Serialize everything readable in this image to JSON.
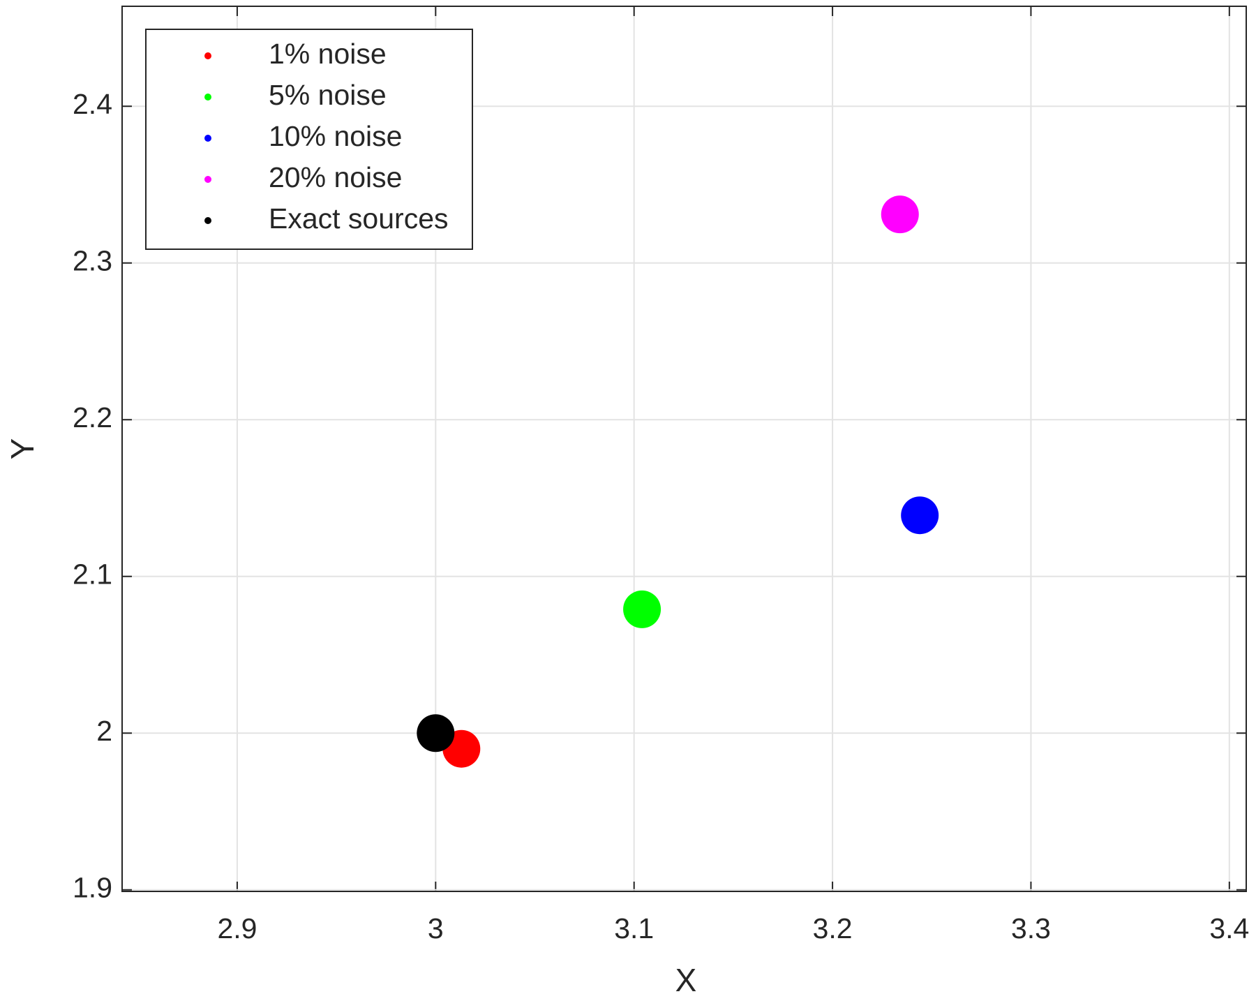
{
  "chart_data": {
    "type": "scatter",
    "xlabel": "X",
    "ylabel": "Y",
    "xlim": [
      2.842,
      3.4085
    ],
    "ylim": [
      1.899,
      2.4638
    ],
    "xticks": [
      2.9,
      3,
      3.1,
      3.2,
      3.3,
      3.4
    ],
    "yticks": [
      1.9,
      2,
      2.1,
      2.2,
      2.3,
      2.4
    ],
    "grid": true,
    "legend": "upper left",
    "series": [
      {
        "name": "1% noise",
        "color": "#ff0000",
        "x": [
          3.013
        ],
        "y": [
          1.99
        ]
      },
      {
        "name": "5% noise",
        "color": "#00ff00",
        "x": [
          3.104
        ],
        "y": [
          2.079
        ]
      },
      {
        "name": "10% noise",
        "color": "#0000ff",
        "x": [
          3.244
        ],
        "y": [
          2.139
        ]
      },
      {
        "name": "20% noise",
        "color": "#ff00ff",
        "x": [
          3.234
        ],
        "y": [
          2.331
        ]
      },
      {
        "name": "Exact sources",
        "color": "#000000",
        "x": [
          3
        ],
        "y": [
          2
        ]
      }
    ]
  }
}
